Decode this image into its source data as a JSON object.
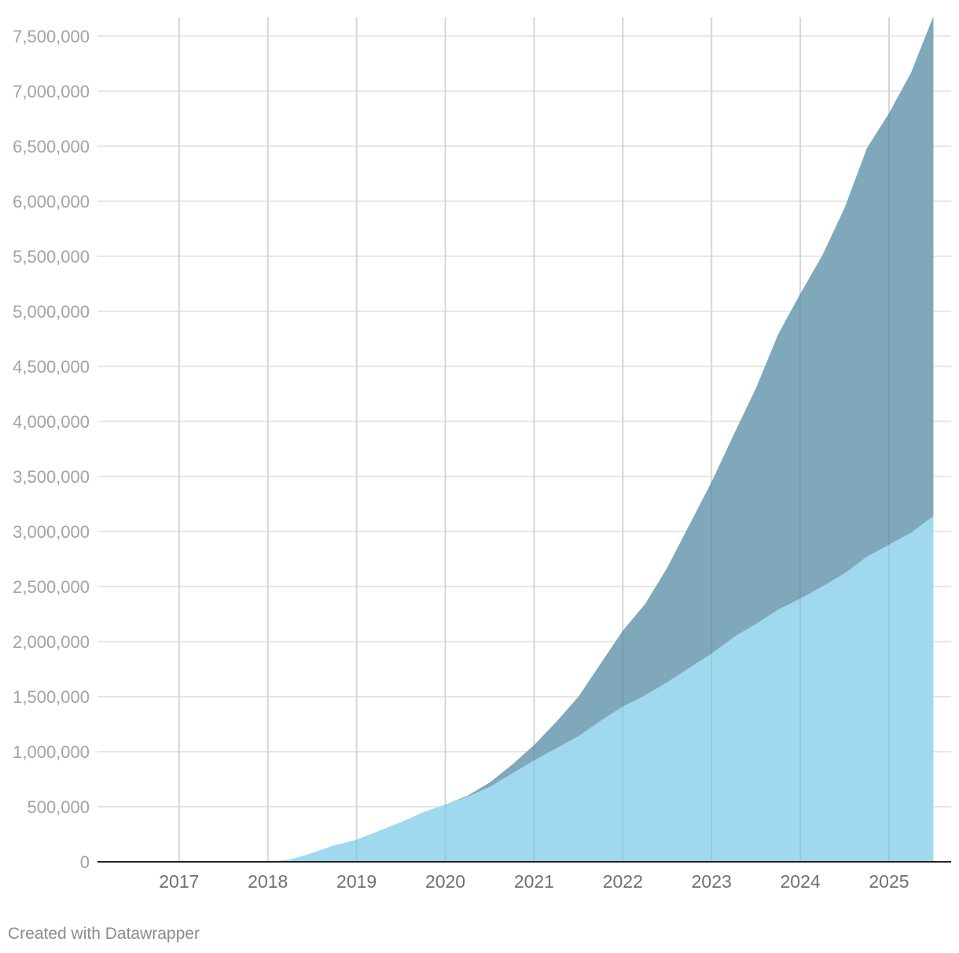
{
  "chart_data": {
    "type": "area",
    "stacked": true,
    "title": "",
    "xlabel": "",
    "ylabel": "",
    "x_ticks": [
      "2017",
      "2018",
      "2019",
      "2020",
      "2021",
      "2022",
      "2023",
      "2024",
      "2025"
    ],
    "xlim": [
      2016.08,
      2025.7
    ],
    "ylim": [
      0,
      7670000
    ],
    "y_ticks": [
      0,
      500000,
      1000000,
      1500000,
      2000000,
      2500000,
      3000000,
      3500000,
      4000000,
      4500000,
      5000000,
      5500000,
      6000000,
      6500000,
      7000000,
      7500000
    ],
    "y_tick_labels": [
      "0",
      "500,000",
      "1,000,000",
      "1,500,000",
      "2,000,000",
      "2,500,000",
      "3,000,000",
      "3,500,000",
      "4,000,000",
      "4,500,000",
      "5,000,000",
      "5,500,000",
      "6,000,000",
      "6,500,000",
      "7,000,000",
      "7,500,000"
    ],
    "grid": true,
    "legend": "none",
    "x": [
      2017.0,
      2018.0,
      2018.25,
      2018.5,
      2018.75,
      2019.0,
      2019.25,
      2019.5,
      2019.75,
      2020.0,
      2020.25,
      2020.5,
      2020.75,
      2021.0,
      2021.25,
      2021.5,
      2021.75,
      2022.0,
      2022.25,
      2022.5,
      2022.75,
      2023.0,
      2023.25,
      2023.5,
      2023.75,
      2024.0,
      2024.25,
      2024.5,
      2024.75,
      2025.0,
      2025.25,
      2025.5
    ],
    "series": [
      {
        "color": "#a0d9ef",
        "values": [
          0,
          0,
          20000,
          80000,
          150000,
          200000,
          280000,
          360000,
          450000,
          520000,
          590000,
          680000,
          800000,
          920000,
          1030000,
          1140000,
          1280000,
          1410000,
          1510000,
          1630000,
          1760000,
          1890000,
          2040000,
          2160000,
          2290000,
          2390000,
          2500000,
          2620000,
          2770000,
          2880000,
          2990000,
          3140000
        ]
      },
      {
        "color": "#7fa8ba",
        "values": [
          0,
          0,
          0,
          0,
          0,
          0,
          0,
          0,
          0,
          0,
          10000,
          40000,
          80000,
          140000,
          240000,
          360000,
          520000,
          690000,
          830000,
          1040000,
          1300000,
          1560000,
          1840000,
          2140000,
          2500000,
          2770000,
          3010000,
          3320000,
          3710000,
          3920000,
          4180000,
          4540000
        ]
      }
    ]
  },
  "footer": {
    "credit": "Created with Datawrapper"
  }
}
